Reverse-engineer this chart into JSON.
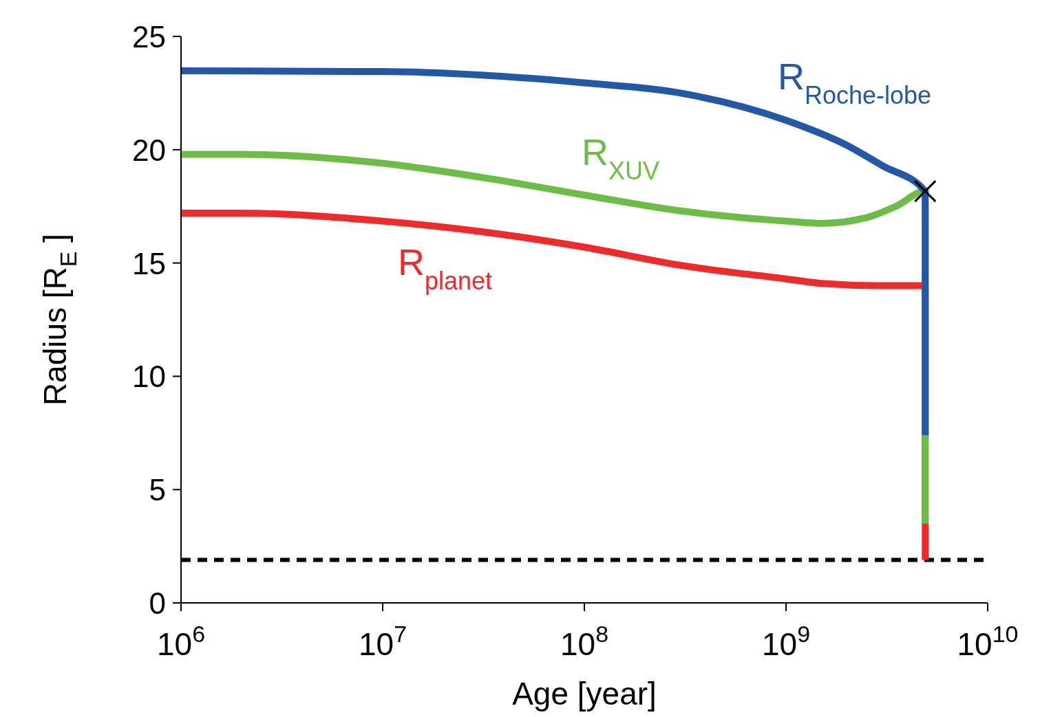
{
  "chart_data": {
    "type": "line",
    "xlabel": "Age [year]",
    "ylabel": "Radius [R$_{E}$ ]",
    "log": "x",
    "xlim": [
      1000000,
      10000000000
    ],
    "xticks": [
      {
        "value": 1000000,
        "label": "10$^{6}$"
      },
      {
        "value": 10000000,
        "label": "10$^{7}$"
      },
      {
        "value": 100000000,
        "label": "10$^{8}$"
      },
      {
        "value": 1000000000,
        "label": "10$^{9}$"
      },
      {
        "value": 10000000000,
        "label": "10$^{10}$"
      }
    ],
    "ylim": [
      0,
      25
    ],
    "yticks": [
      0,
      5,
      10,
      15,
      20,
      25
    ],
    "grid": false,
    "legend": false,
    "marker": "none",
    "line_style": "solid",
    "series": [
      {
        "name": "R$_{planet}$",
        "color": "#ee2a2a",
        "x": [
          1000000,
          2000000,
          10000000,
          30000000,
          100000000,
          300000000,
          1000000000,
          1500000000,
          3000000000,
          4900000000,
          4900000000
        ],
        "values": [
          17.2,
          17.2,
          16.85,
          16.4,
          15.7,
          14.9,
          14.3,
          14.1,
          14.0,
          14.0,
          1.9
        ]
      },
      {
        "name": "R$_{XUV}$",
        "color": "#6cbd45",
        "x": [
          1000000,
          2000000,
          10000000,
          30000000,
          100000000,
          300000000,
          1000000000,
          1500000000,
          2500000000,
          3500000000,
          4900000000,
          4900000000
        ],
        "values": [
          19.8,
          19.8,
          19.4,
          18.8,
          18.0,
          17.3,
          16.85,
          16.75,
          17.0,
          17.5,
          18.17,
          3.5
        ]
      },
      {
        "name": "R$_{Roche-lobe}$",
        "color": "#2358a6",
        "x": [
          1000000,
          10000000,
          30000000,
          100000000,
          300000000,
          1000000000,
          2000000000,
          3000000000,
          4900000000,
          4900000000
        ],
        "values": [
          23.48,
          23.45,
          23.3,
          22.95,
          22.5,
          21.3,
          20.2,
          19.3,
          18.17,
          7.4
        ]
      },
      {
        "type": "scatter",
        "color": "#000000",
        "marker": "cross",
        "x": [
          4900000000
        ],
        "values": [
          18.17
        ]
      }
    ],
    "ref_lines": [
      {
        "axis": "y",
        "value": 1.9,
        "color": "#000000",
        "line_style": "dashed"
      }
    ]
  }
}
